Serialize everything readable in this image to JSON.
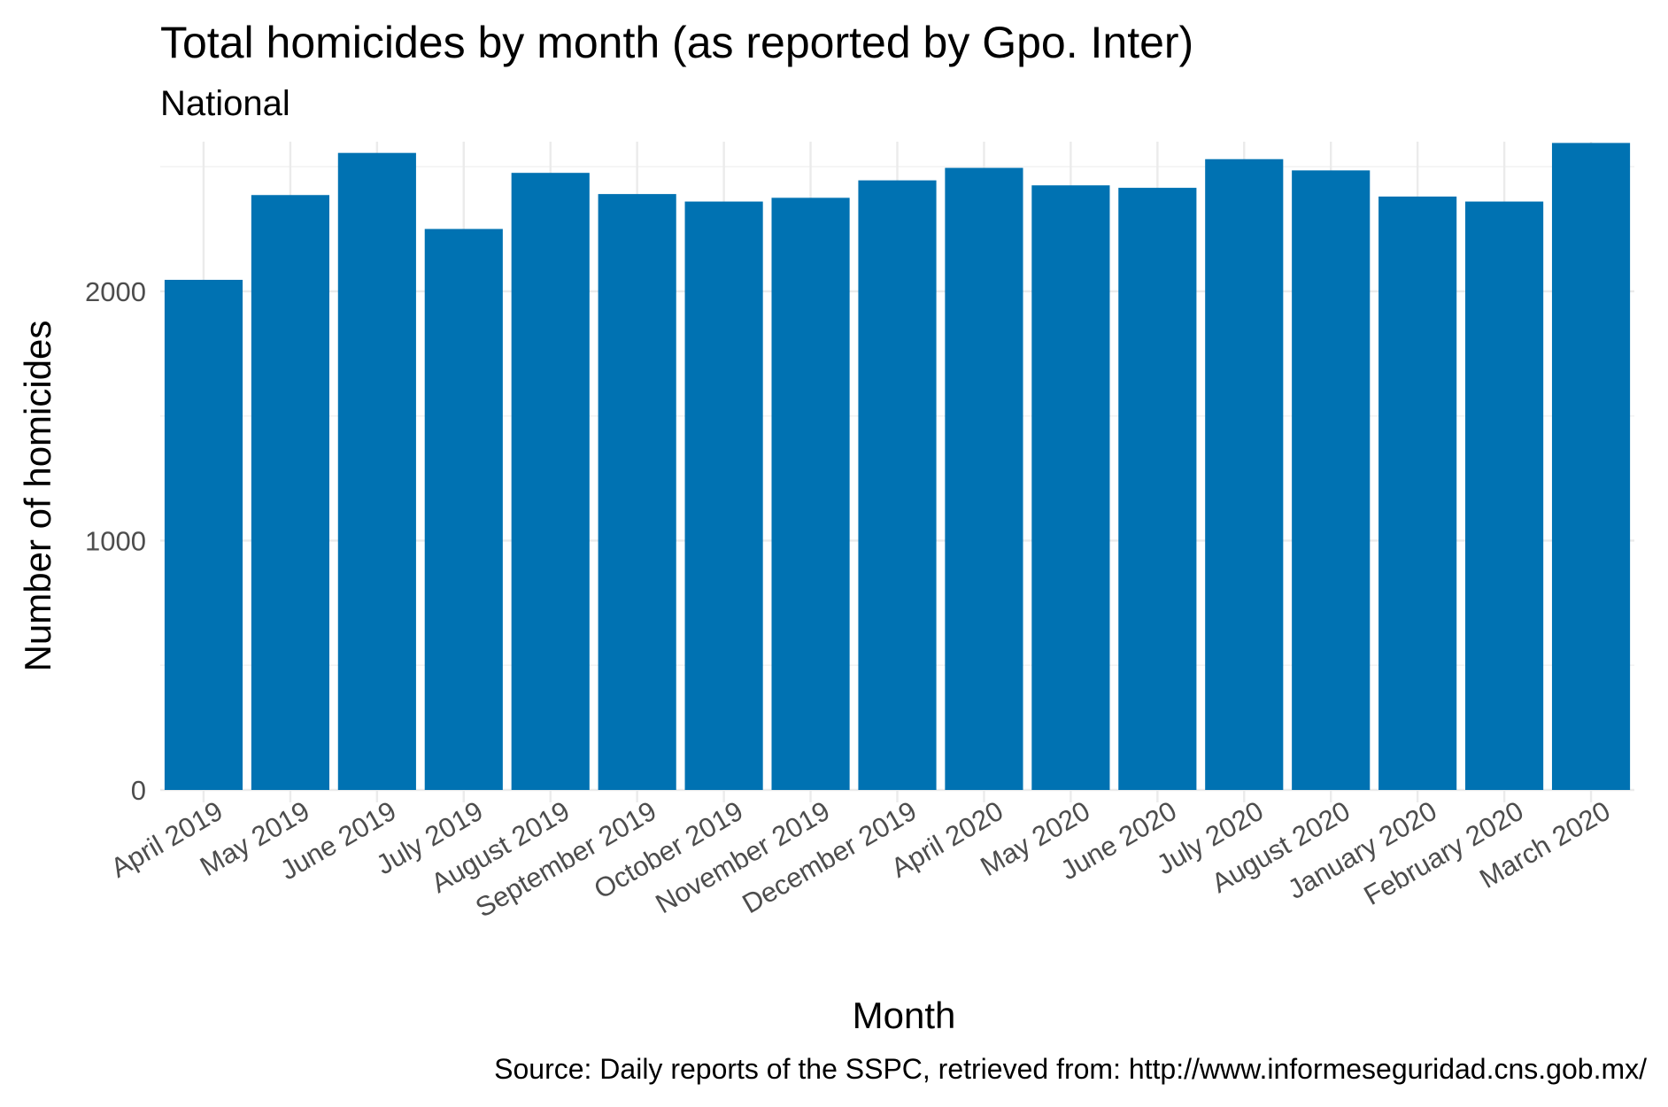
{
  "chart_data": {
    "type": "bar",
    "title": "Total homicides by month (as reported by Gpo. Inter)",
    "subtitle": "National",
    "xlabel": "Month",
    "ylabel": "Number of homicides",
    "caption": "Source: Daily reports of the SSPC, retrieved from: http://www.informeseguridad.cns.gob.mx/",
    "categories": [
      "April 2019",
      "May 2019",
      "June 2019",
      "July 2019",
      "August 2019",
      "September 2019",
      "October 2019",
      "November 2019",
      "December 2019",
      "April 2020",
      "May 2020",
      "June 2020",
      "July 2020",
      "August 2020",
      "January 2020",
      "February 2020",
      "March 2020"
    ],
    "values": [
      2046,
      2386,
      2555,
      2250,
      2475,
      2390,
      2360,
      2375,
      2445,
      2495,
      2425,
      2415,
      2530,
      2485,
      2380,
      2360,
      2595
    ],
    "ylim": [
      0,
      2600
    ],
    "yticks": [
      0,
      1000,
      2000
    ],
    "grid": true,
    "legend": "none",
    "bar_color": "#0072B2"
  }
}
